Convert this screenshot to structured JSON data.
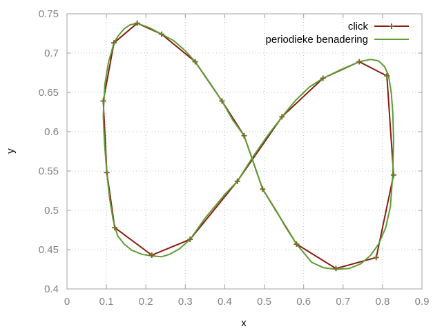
{
  "chart_data": {
    "type": "line",
    "xlabel": "x",
    "ylabel": "y",
    "xlim": [
      0,
      0.9
    ],
    "ylim": [
      0.4,
      0.75
    ],
    "x_ticks": [
      0,
      0.1,
      0.2,
      0.3,
      0.4,
      0.5,
      0.6,
      0.7,
      0.8,
      0.9
    ],
    "x_tick_labels": [
      "0",
      "0.1",
      "0.2",
      "0.3",
      "0.4",
      "0.5",
      "0.6",
      "0.7",
      "0.8",
      "0.9"
    ],
    "y_ticks": [
      0.4,
      0.45,
      0.5,
      0.55,
      0.6,
      0.65,
      0.7,
      0.75
    ],
    "y_tick_labels": [
      "0.4",
      "0.45",
      "0.5",
      "0.55",
      "0.6",
      "0.65",
      "0.7",
      "0.75"
    ],
    "grid": true,
    "legend_position": "top-right",
    "series": [
      {
        "name": "click",
        "color": "#8b1a0e",
        "marker": "plus",
        "x": [
          0.092,
          0.101,
          0.121,
          0.215,
          0.312,
          0.432,
          0.545,
          0.649,
          0.741,
          0.811,
          0.828,
          0.784,
          0.682,
          0.582,
          0.496,
          0.449,
          0.393,
          0.325,
          0.24,
          0.178,
          0.119,
          0.092
        ],
        "y": [
          0.639,
          0.548,
          0.478,
          0.443,
          0.463,
          0.537,
          0.619,
          0.668,
          0.689,
          0.671,
          0.545,
          0.44,
          0.426,
          0.457,
          0.527,
          0.595,
          0.639,
          0.689,
          0.724,
          0.738,
          0.713,
          0.639
        ]
      },
      {
        "name": "periodieke benadering",
        "color": "#5e9c36",
        "marker": "none",
        "x": [
          0.092,
          0.095,
          0.101,
          0.108,
          0.117,
          0.128,
          0.145,
          0.165,
          0.19,
          0.215,
          0.24,
          0.26,
          0.285,
          0.312,
          0.35,
          0.4,
          0.432,
          0.47,
          0.51,
          0.545,
          0.58,
          0.615,
          0.649,
          0.69,
          0.741,
          0.77,
          0.79,
          0.805,
          0.815,
          0.822,
          0.826,
          0.828,
          0.826,
          0.82,
          0.808,
          0.79,
          0.77,
          0.745,
          0.715,
          0.682,
          0.65,
          0.62,
          0.582,
          0.555,
          0.53,
          0.496,
          0.47,
          0.449,
          0.42,
          0.393,
          0.365,
          0.325,
          0.3,
          0.27,
          0.24,
          0.21,
          0.178,
          0.16,
          0.145,
          0.13,
          0.119,
          0.105,
          0.096,
          0.092
        ],
        "y": [
          0.62,
          0.585,
          0.548,
          0.515,
          0.488,
          0.468,
          0.457,
          0.449,
          0.444,
          0.442,
          0.441,
          0.444,
          0.451,
          0.463,
          0.49,
          0.52,
          0.537,
          0.567,
          0.596,
          0.619,
          0.64,
          0.657,
          0.668,
          0.678,
          0.689,
          0.692,
          0.69,
          0.683,
          0.672,
          0.65,
          0.625,
          0.59,
          0.545,
          0.505,
          0.478,
          0.457,
          0.443,
          0.432,
          0.426,
          0.425,
          0.427,
          0.434,
          0.457,
          0.478,
          0.5,
          0.527,
          0.565,
          0.595,
          0.615,
          0.639,
          0.66,
          0.689,
          0.703,
          0.716,
          0.724,
          0.732,
          0.738,
          0.736,
          0.731,
          0.722,
          0.713,
          0.688,
          0.66,
          0.62
        ]
      }
    ]
  }
}
